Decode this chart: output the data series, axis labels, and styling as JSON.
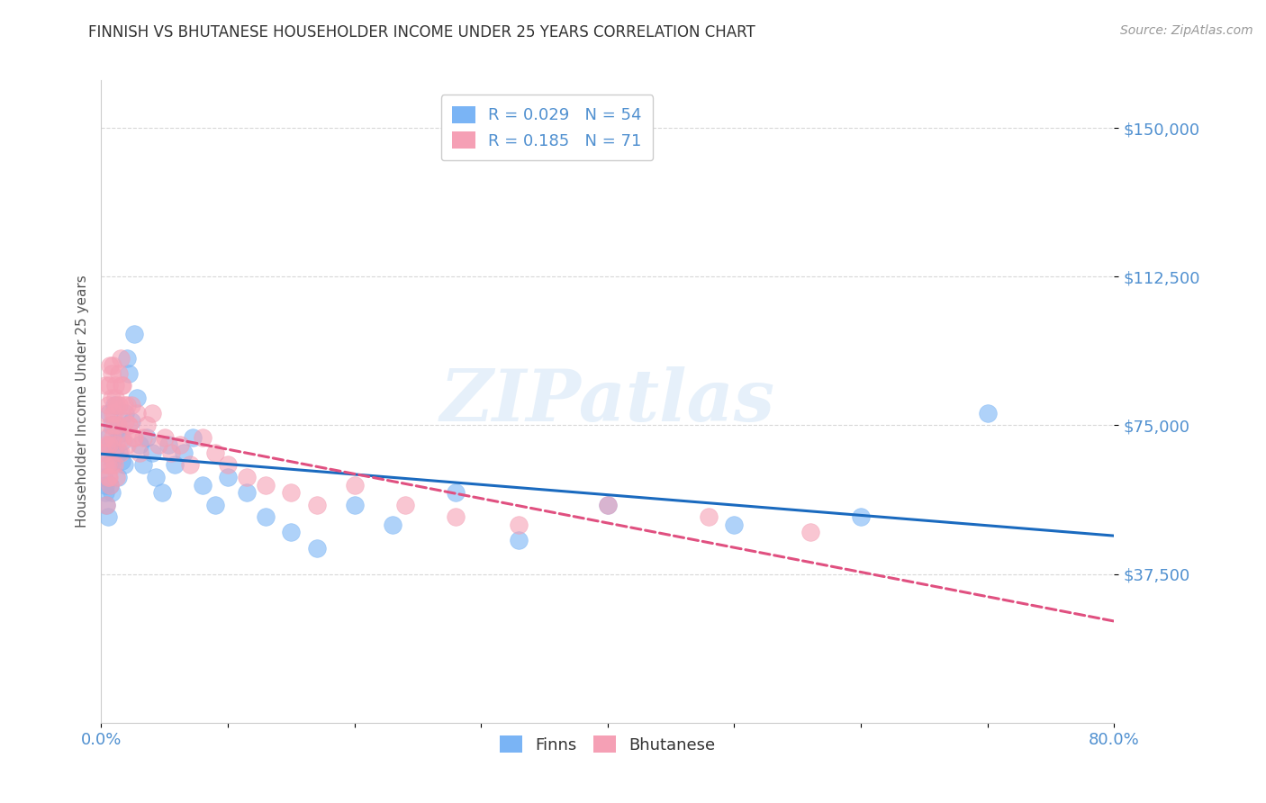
{
  "title": "FINNISH VS BHUTANESE HOUSEHOLDER INCOME UNDER 25 YEARS CORRELATION CHART",
  "source": "Source: ZipAtlas.com",
  "ylabel": "Householder Income Under 25 years",
  "ytick_labels": [
    "$37,500",
    "$75,000",
    "$112,500",
    "$150,000"
  ],
  "ytick_values": [
    37500,
    75000,
    112500,
    150000
  ],
  "ylim": [
    0,
    162000
  ],
  "xlim": [
    0.0,
    0.8
  ],
  "legend_finn_r": "0.029",
  "legend_finn_n": "54",
  "legend_bhut_r": "0.185",
  "legend_bhut_n": "71",
  "finn_color": "#7ab4f5",
  "bhut_color": "#f5a0b5",
  "finn_line_color": "#1a6abf",
  "bhut_line_color": "#e05080",
  "title_color": "#333333",
  "axis_label_color": "#5090d0",
  "watermark": "ZIPatlas",
  "background_color": "#ffffff",
  "grid_color": "#d8d8d8",
  "finn_x": [
    0.002,
    0.003,
    0.004,
    0.004,
    0.005,
    0.005,
    0.006,
    0.006,
    0.007,
    0.007,
    0.008,
    0.008,
    0.009,
    0.01,
    0.011,
    0.012,
    0.013,
    0.014,
    0.015,
    0.016,
    0.017,
    0.018,
    0.019,
    0.02,
    0.022,
    0.024,
    0.026,
    0.028,
    0.03,
    0.033,
    0.036,
    0.04,
    0.043,
    0.048,
    0.053,
    0.058,
    0.065,
    0.072,
    0.08,
    0.09,
    0.1,
    0.115,
    0.13,
    0.15,
    0.17,
    0.2,
    0.23,
    0.28,
    0.33,
    0.4,
    0.5,
    0.6,
    0.7,
    0.003
  ],
  "finn_y": [
    62000,
    58000,
    55000,
    68000,
    52000,
    72000,
    65000,
    78000,
    70000,
    60000,
    75000,
    58000,
    66000,
    80000,
    69000,
    74000,
    62000,
    68000,
    73000,
    66000,
    71000,
    65000,
    78000,
    92000,
    88000,
    76000,
    98000,
    82000,
    70000,
    65000,
    72000,
    68000,
    62000,
    58000,
    70000,
    65000,
    68000,
    72000,
    60000,
    55000,
    62000,
    58000,
    52000,
    48000,
    44000,
    55000,
    50000,
    58000,
    46000,
    55000,
    50000,
    52000,
    78000,
    60000
  ],
  "bhut_x": [
    0.002,
    0.003,
    0.003,
    0.004,
    0.004,
    0.005,
    0.005,
    0.006,
    0.006,
    0.007,
    0.007,
    0.008,
    0.008,
    0.009,
    0.009,
    0.01,
    0.01,
    0.011,
    0.012,
    0.012,
    0.013,
    0.014,
    0.015,
    0.016,
    0.017,
    0.018,
    0.019,
    0.02,
    0.022,
    0.024,
    0.026,
    0.028,
    0.03,
    0.033,
    0.036,
    0.04,
    0.045,
    0.05,
    0.055,
    0.062,
    0.07,
    0.08,
    0.09,
    0.1,
    0.115,
    0.13,
    0.15,
    0.17,
    0.2,
    0.24,
    0.28,
    0.33,
    0.4,
    0.48,
    0.56,
    0.003,
    0.004,
    0.005,
    0.006,
    0.007,
    0.008,
    0.009,
    0.01,
    0.011,
    0.012,
    0.014,
    0.015,
    0.017,
    0.02,
    0.022,
    0.025
  ],
  "bhut_y": [
    68000,
    65000,
    72000,
    78000,
    55000,
    80000,
    62000,
    85000,
    70000,
    75000,
    60000,
    88000,
    65000,
    90000,
    72000,
    78000,
    65000,
    82000,
    70000,
    62000,
    75000,
    80000,
    68000,
    85000,
    72000,
    80000,
    76000,
    70000,
    75000,
    80000,
    72000,
    78000,
    68000,
    72000,
    75000,
    78000,
    70000,
    72000,
    68000,
    70000,
    65000,
    72000,
    68000,
    65000,
    62000,
    60000,
    58000,
    55000,
    60000,
    55000,
    52000,
    50000,
    55000,
    52000,
    48000,
    85000,
    70000,
    65000,
    62000,
    90000,
    82000,
    78000,
    75000,
    85000,
    80000,
    88000,
    92000,
    85000,
    80000,
    75000,
    72000
  ]
}
